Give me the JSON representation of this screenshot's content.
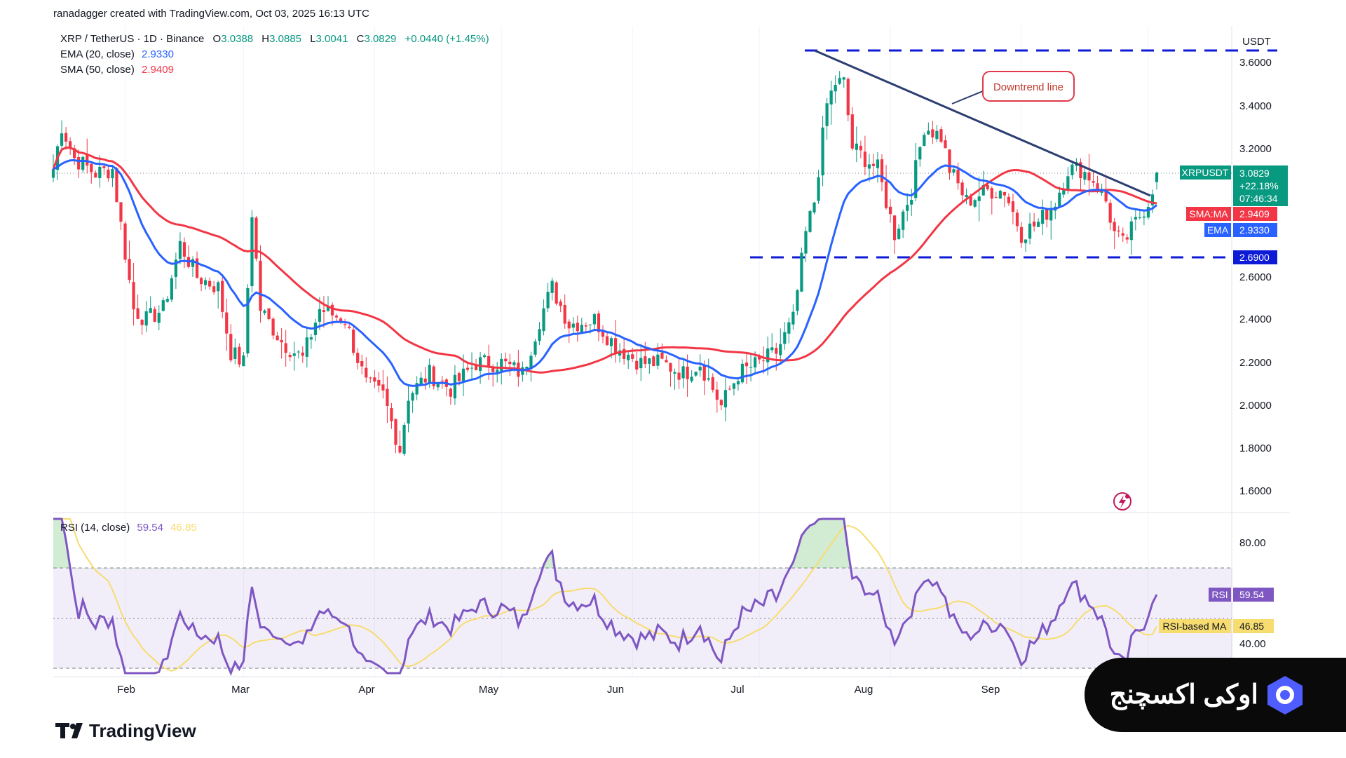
{
  "header": {
    "credit": "ranadagger created with TradingView.com, Oct 03, 2025 16:13 UTC"
  },
  "legend": {
    "symbol": "XRP / TetherUS · 1D · Binance",
    "o_label": "O",
    "o": "3.0388",
    "h_label": "H",
    "h": "3.0885",
    "l_label": "L",
    "l": "3.0041",
    "c_label": "C",
    "c": "3.0829",
    "change": "+0.0440 (+1.45%)",
    "ema_label": "EMA (20, close)",
    "ema_value": "2.9330",
    "sma_label": "SMA (50, close)",
    "sma_value": "2.9409"
  },
  "rsi_legend": {
    "label": "RSI (14, close)",
    "value": "59.54",
    "ma_value": "46.85"
  },
  "axis": {
    "unit": "USDT",
    "price_ticks": [
      "3.6000",
      "3.4000",
      "3.2000",
      "2.6000",
      "2.4000",
      "2.2000",
      "2.0000",
      "1.8000",
      "1.6000"
    ],
    "rsi_ticks": [
      "80.00",
      "40.00"
    ],
    "months": [
      "Feb",
      "Mar",
      "Apr",
      "May",
      "Jun",
      "Jul",
      "Aug",
      "Sep"
    ]
  },
  "badges": {
    "price_name": "XRPUSDT",
    "price": "3.0829",
    "pct": "+22.18%",
    "countdown": "07:46:34",
    "sma_name": "SMA:MA",
    "sma": "2.9409",
    "ema_name": "EMA",
    "ema": "2.9330",
    "support": "2.6900",
    "rsi_name": "RSI",
    "rsi": "59.54",
    "rsi_ma_name": "RSI-based MA",
    "rsi_ma": "46.85"
  },
  "annotation": {
    "downtrend": "Downtrend line"
  },
  "footer": {
    "tv_logo": "TradingView",
    "brand": "اوکی اکسچنج"
  },
  "colors": {
    "up": "#089981",
    "down": "#f23645",
    "ema": "#2962ff",
    "sma": "#f23645",
    "rsi": "#7e57c2",
    "rsi_ma": "#f7dc6f",
    "level": "#0d1ad6",
    "trend": "#2c3e72"
  },
  "chart_data": {
    "type": "candlestick",
    "x_range": [
      "2025-01-15",
      "2025-10-03"
    ],
    "y_range": [
      1.55,
      3.7
    ],
    "resistance_level": 3.65,
    "support_level": 2.69,
    "downtrend_line": {
      "from": [
        "2025-07-18",
        3.65
      ],
      "to": [
        "2025-10-03",
        2.96
      ]
    },
    "last": {
      "open": 3.0388,
      "high": 3.0885,
      "low": 3.0041,
      "close": 3.0829
    },
    "ema20_last": 2.933,
    "sma50_last": 2.9409,
    "rsi_last": 59.54,
    "rsi_ma_last": 46.85,
    "rsi_levels": [
      70,
      50,
      30
    ],
    "price_path": [
      {
        "date": "2025-01-15",
        "close": 3.1
      },
      {
        "date": "2025-01-17",
        "close": 3.3
      },
      {
        "date": "2025-01-20",
        "close": 3.15
      },
      {
        "date": "2025-01-25",
        "close": 3.08
      },
      {
        "date": "2025-01-29",
        "close": 3.1
      },
      {
        "date": "2025-02-02",
        "close": 2.58
      },
      {
        "date": "2025-02-03",
        "close": 2.45
      },
      {
        "date": "2025-02-06",
        "close": 2.4
      },
      {
        "date": "2025-02-10",
        "close": 2.45
      },
      {
        "date": "2025-02-14",
        "close": 2.75
      },
      {
        "date": "2025-02-18",
        "close": 2.6
      },
      {
        "date": "2025-02-23",
        "close": 2.55
      },
      {
        "date": "2025-02-26",
        "close": 2.25
      },
      {
        "date": "2025-03-01",
        "close": 2.2
      },
      {
        "date": "2025-03-03",
        "close": 2.9
      },
      {
        "date": "2025-03-05",
        "close": 2.45
      },
      {
        "date": "2025-03-10",
        "close": 2.3
      },
      {
        "date": "2025-03-15",
        "close": 2.22
      },
      {
        "date": "2025-03-19",
        "close": 2.45
      },
      {
        "date": "2025-03-25",
        "close": 2.4
      },
      {
        "date": "2025-03-30",
        "close": 2.1
      },
      {
        "date": "2025-04-03",
        "close": 2.05
      },
      {
        "date": "2025-04-07",
        "close": 1.8
      },
      {
        "date": "2025-04-09",
        "close": 2.05
      },
      {
        "date": "2025-04-14",
        "close": 2.15
      },
      {
        "date": "2025-04-19",
        "close": 2.08
      },
      {
        "date": "2025-04-25",
        "close": 2.2
      },
      {
        "date": "2025-05-01",
        "close": 2.2
      },
      {
        "date": "2025-05-06",
        "close": 2.15
      },
      {
        "date": "2025-05-10",
        "close": 2.4
      },
      {
        "date": "2025-05-13",
        "close": 2.55
      },
      {
        "date": "2025-05-17",
        "close": 2.38
      },
      {
        "date": "2025-05-23",
        "close": 2.4
      },
      {
        "date": "2025-05-28",
        "close": 2.28
      },
      {
        "date": "2025-06-03",
        "close": 2.2
      },
      {
        "date": "2025-06-08",
        "close": 2.2
      },
      {
        "date": "2025-06-13",
        "close": 2.15
      },
      {
        "date": "2025-06-17",
        "close": 2.2
      },
      {
        "date": "2025-06-22",
        "close": 2.0
      },
      {
        "date": "2025-06-26",
        "close": 2.15
      },
      {
        "date": "2025-07-01",
        "close": 2.2
      },
      {
        "date": "2025-07-05",
        "close": 2.25
      },
      {
        "date": "2025-07-09",
        "close": 2.4
      },
      {
        "date": "2025-07-12",
        "close": 2.8
      },
      {
        "date": "2025-07-14",
        "close": 2.95
      },
      {
        "date": "2025-07-17",
        "close": 3.4
      },
      {
        "date": "2025-07-19",
        "close": 3.5
      },
      {
        "date": "2025-07-21",
        "close": 3.5
      },
      {
        "date": "2025-07-23",
        "close": 3.2
      },
      {
        "date": "2025-07-26",
        "close": 3.15
      },
      {
        "date": "2025-07-29",
        "close": 3.1
      },
      {
        "date": "2025-08-02",
        "close": 2.8
      },
      {
        "date": "2025-08-06",
        "close": 3.0
      },
      {
        "date": "2025-08-09",
        "close": 3.3
      },
      {
        "date": "2025-08-13",
        "close": 3.25
      },
      {
        "date": "2025-08-15",
        "close": 3.1
      },
      {
        "date": "2025-08-19",
        "close": 2.95
      },
      {
        "date": "2025-08-24",
        "close": 3.0
      },
      {
        "date": "2025-08-28",
        "close": 3.0
      },
      {
        "date": "2025-09-01",
        "close": 2.8
      },
      {
        "date": "2025-09-05",
        "close": 2.85
      },
      {
        "date": "2025-09-09",
        "close": 2.95
      },
      {
        "date": "2025-09-12",
        "close": 3.1
      },
      {
        "date": "2025-09-15",
        "close": 3.1
      },
      {
        "date": "2025-09-18",
        "close": 3.05
      },
      {
        "date": "2025-09-21",
        "close": 2.95
      },
      {
        "date": "2025-09-23",
        "close": 2.8
      },
      {
        "date": "2025-09-25",
        "close": 2.75
      },
      {
        "date": "2025-09-28",
        "close": 2.85
      },
      {
        "date": "2025-10-01",
        "close": 2.95
      },
      {
        "date": "2025-10-03",
        "close": 3.08
      }
    ]
  }
}
